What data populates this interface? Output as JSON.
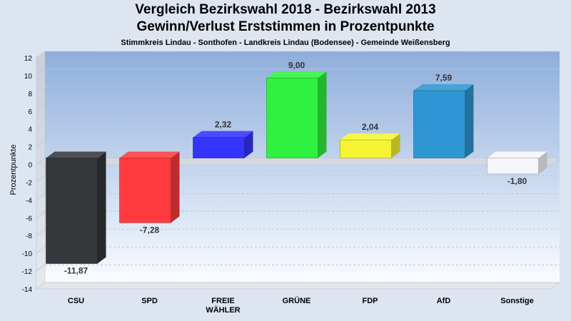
{
  "chart_data": {
    "type": "bar",
    "title": "Vergleich Bezirkswahl 2018 - Bezirkswahl 2013",
    "subtitle": "Gewinn/Verlust Erststimmen in Prozentpunkte",
    "caption": "Stimmkreis Lindau - Sonthofen - Landkreis Lindau (Bodensee) - Gemeinde Weißensberg",
    "ylabel": "Prozentpunkte",
    "xlabel": "",
    "ylim": [
      -14,
      12
    ],
    "yticks": [
      12,
      10,
      8,
      6,
      4,
      2,
      0,
      -2,
      -4,
      -6,
      -8,
      -10,
      -12,
      -14
    ],
    "categories": [
      [
        "CSU"
      ],
      [
        "SPD"
      ],
      [
        "FREIE",
        "WÄHLER"
      ],
      [
        "GRÜNE"
      ],
      [
        "FDP"
      ],
      [
        "AfD"
      ],
      [
        "Sonstige"
      ]
    ],
    "values": [
      -11.87,
      -7.28,
      2.32,
      9.0,
      2.04,
      7.59,
      -1.8
    ],
    "value_labels": [
      "-11,87",
      "-7,28",
      "2,32",
      "9,00",
      "2,04",
      "7,59",
      "-1,80"
    ],
    "colors": [
      "#35373b",
      "#ff3a3e",
      "#3434ff",
      "#2ef23d",
      "#f4f432",
      "#2e96d2",
      "#f4f6fa"
    ],
    "grid": true,
    "legend": "none"
  }
}
